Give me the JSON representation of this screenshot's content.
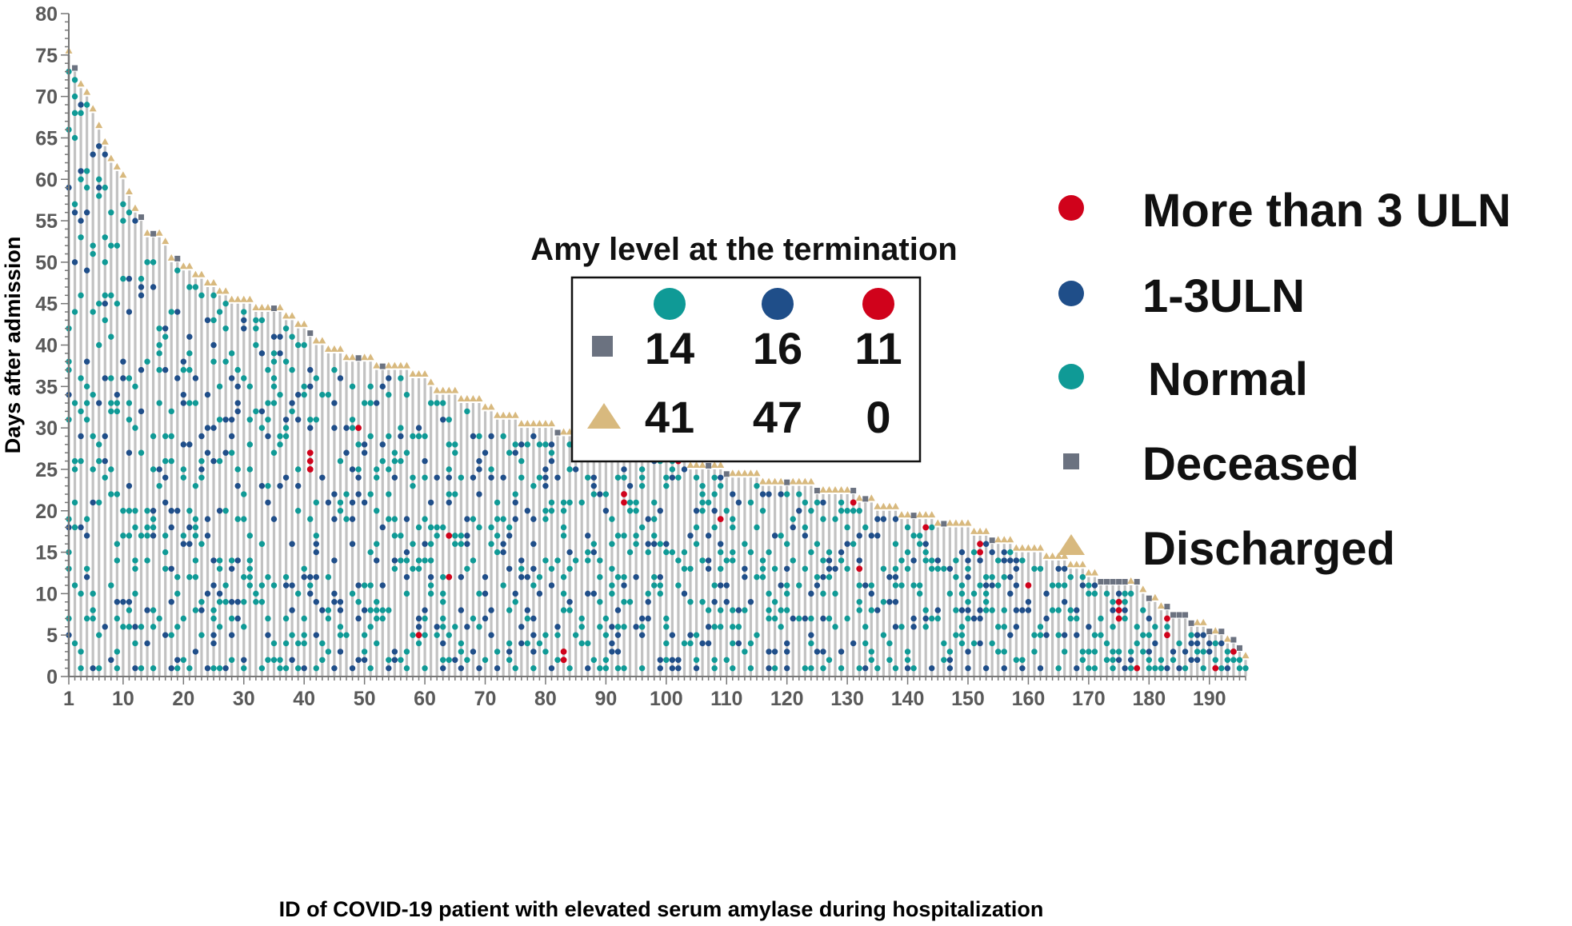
{
  "chart_data": {
    "type": "scatter",
    "xlabel": "ID of COVID-19 patient with elevated serum amylase during hospitalization",
    "ylabel": "Days after admission",
    "xlim": [
      1,
      196
    ],
    "ylim": [
      0,
      80
    ],
    "x_ticks": [
      1,
      10,
      20,
      30,
      40,
      50,
      60,
      70,
      80,
      90,
      100,
      110,
      120,
      130,
      140,
      150,
      160,
      170,
      180,
      190
    ],
    "y_ticks": [
      0,
      5,
      10,
      15,
      20,
      25,
      30,
      35,
      40,
      45,
      50,
      55,
      60,
      65,
      70,
      75,
      80
    ],
    "grid": false,
    "legend": {
      "placement": "right",
      "entries": [
        {
          "label": "More than 3 ULN",
          "marker": "circle",
          "color": "#d0021b"
        },
        {
          "label": "1-3ULN",
          "marker": "circle",
          "color": "#1f4e89"
        },
        {
          "label": "Normal",
          "marker": "circle",
          "color": "#0f9a96"
        },
        {
          "label": "Deceased",
          "marker": "square",
          "color": "#6b7280"
        },
        {
          "label": "Discharged",
          "marker": "triangle",
          "color": "#d8b97e"
        }
      ]
    },
    "summary_table": {
      "title": "Amy level at the termination",
      "columns": [
        "Normal",
        "1-3ULN",
        "More than 3 ULN"
      ],
      "column_colors": [
        "#0f9a96",
        "#1f4e89",
        "#d0021b"
      ],
      "rows": [
        {
          "outcome": "Deceased",
          "marker": "square",
          "color": "#6b7280",
          "values": [
            14,
            16,
            11
          ]
        },
        {
          "outcome": "Discharged",
          "marker": "triangle",
          "color": "#d8b97e",
          "values": [
            41,
            47,
            0
          ]
        }
      ]
    },
    "patients": {
      "description_of_fields": "each patient: [id, hospitalization days, outcome]",
      "anchors": [
        [
          1,
          75
        ],
        [
          3,
          71
        ],
        [
          4,
          70
        ],
        [
          6,
          66
        ],
        [
          8,
          62
        ],
        [
          10,
          60
        ],
        [
          12,
          56
        ],
        [
          14,
          53
        ],
        [
          16,
          53
        ],
        [
          18,
          50
        ],
        [
          20,
          49
        ],
        [
          25,
          47
        ],
        [
          28,
          45
        ],
        [
          35,
          44
        ],
        [
          40,
          42
        ],
        [
          42,
          40
        ],
        [
          48,
          38
        ],
        [
          60,
          36
        ],
        [
          62,
          34
        ],
        [
          68,
          33
        ],
        [
          72,
          31
        ],
        [
          78,
          30
        ],
        [
          85,
          29
        ],
        [
          95,
          28
        ],
        [
          100,
          27
        ],
        [
          105,
          25
        ],
        [
          113,
          24
        ],
        [
          118,
          23
        ],
        [
          130,
          22
        ],
        [
          136,
          20
        ],
        [
          140,
          19
        ],
        [
          148,
          18
        ],
        [
          152,
          17
        ],
        [
          155,
          16
        ],
        [
          160,
          15
        ],
        [
          165,
          14
        ],
        [
          168,
          13
        ],
        [
          170,
          12
        ],
        [
          172,
          11
        ],
        [
          178,
          11
        ],
        [
          180,
          9
        ],
        [
          182,
          8
        ],
        [
          185,
          7
        ],
        [
          188,
          6
        ],
        [
          191,
          5
        ],
        [
          193,
          4
        ],
        [
          195,
          3
        ],
        [
          196,
          2
        ]
      ],
      "deceased_ids": [
        2,
        13,
        15,
        19,
        35,
        41,
        49,
        53,
        82,
        98,
        107,
        110,
        120,
        125,
        131,
        133,
        141,
        146,
        154,
        172,
        173,
        174,
        175,
        176,
        178,
        180,
        183,
        184,
        185,
        186,
        187,
        190,
        192,
        194,
        195
      ]
    },
    "measurements": {
      "description_of_fields": "each point: [patient id, day, level]; level is one of normal, 1-3uln, gt3uln",
      "gt3uln": [
        [
          41,
          25
        ],
        [
          41,
          26
        ],
        [
          41,
          27
        ],
        [
          49,
          30
        ],
        [
          59,
          5
        ],
        [
          64,
          12
        ],
        [
          64,
          17
        ],
        [
          83,
          2
        ],
        [
          83,
          3
        ],
        [
          93,
          21
        ],
        [
          93,
          22
        ],
        [
          102,
          26
        ],
        [
          109,
          19
        ],
        [
          131,
          21
        ],
        [
          132,
          13
        ],
        [
          143,
          18
        ],
        [
          152,
          15
        ],
        [
          152,
          16
        ],
        [
          160,
          11
        ],
        [
          175,
          7
        ],
        [
          175,
          8
        ],
        [
          175,
          9
        ],
        [
          178,
          1
        ],
        [
          183,
          5
        ],
        [
          183,
          7
        ],
        [
          191,
          1
        ],
        [
          194,
          3
        ]
      ],
      "pattern_seed": 7
    }
  }
}
